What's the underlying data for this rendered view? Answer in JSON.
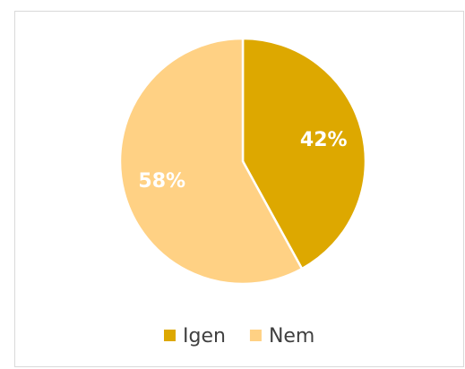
{
  "chart_data": {
    "type": "pie",
    "categories": [
      "Igen",
      "Nem"
    ],
    "values": [
      42,
      58
    ],
    "value_labels": [
      "42%",
      "58%"
    ],
    "colors": [
      "#DDA800",
      "#FFD184"
    ],
    "legend": "bottom"
  }
}
